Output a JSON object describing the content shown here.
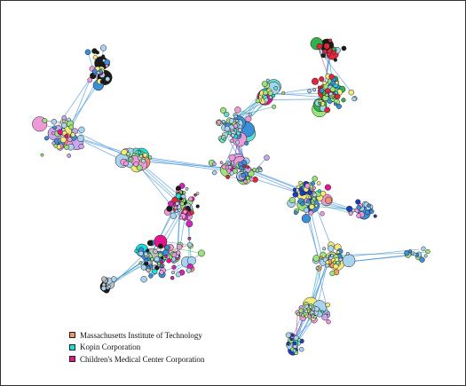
{
  "colors": {
    "background": "#ffffff",
    "border": "#333333",
    "edge_primary": "#3b8fd9",
    "edge_secondary": "#8ec7f0",
    "edge_accents": [
      "#2ecc71",
      "#e53935",
      "#8e24aa"
    ],
    "node_palette": [
      "#a9d4f0",
      "#3b8fd9",
      "#5fe0d0",
      "#9be37a",
      "#f2ea7a",
      "#ee9ad8",
      "#c9a6ee",
      "#f3a05a",
      "#1a3fbf",
      "#e2273a",
      "#cf27b6",
      "#1a1a1a",
      "#bfbfbf",
      "#e0f3ff",
      "#2fb34a"
    ]
  },
  "legend": {
    "items": [
      {
        "label": "Massachusetts Institute of Technology",
        "color": "#f0936a"
      },
      {
        "label": "Kopin Corporation",
        "color": "#18e0dc"
      },
      {
        "label": "Children's Medical Center Corporation",
        "color": "#e8148c"
      }
    ]
  }
}
